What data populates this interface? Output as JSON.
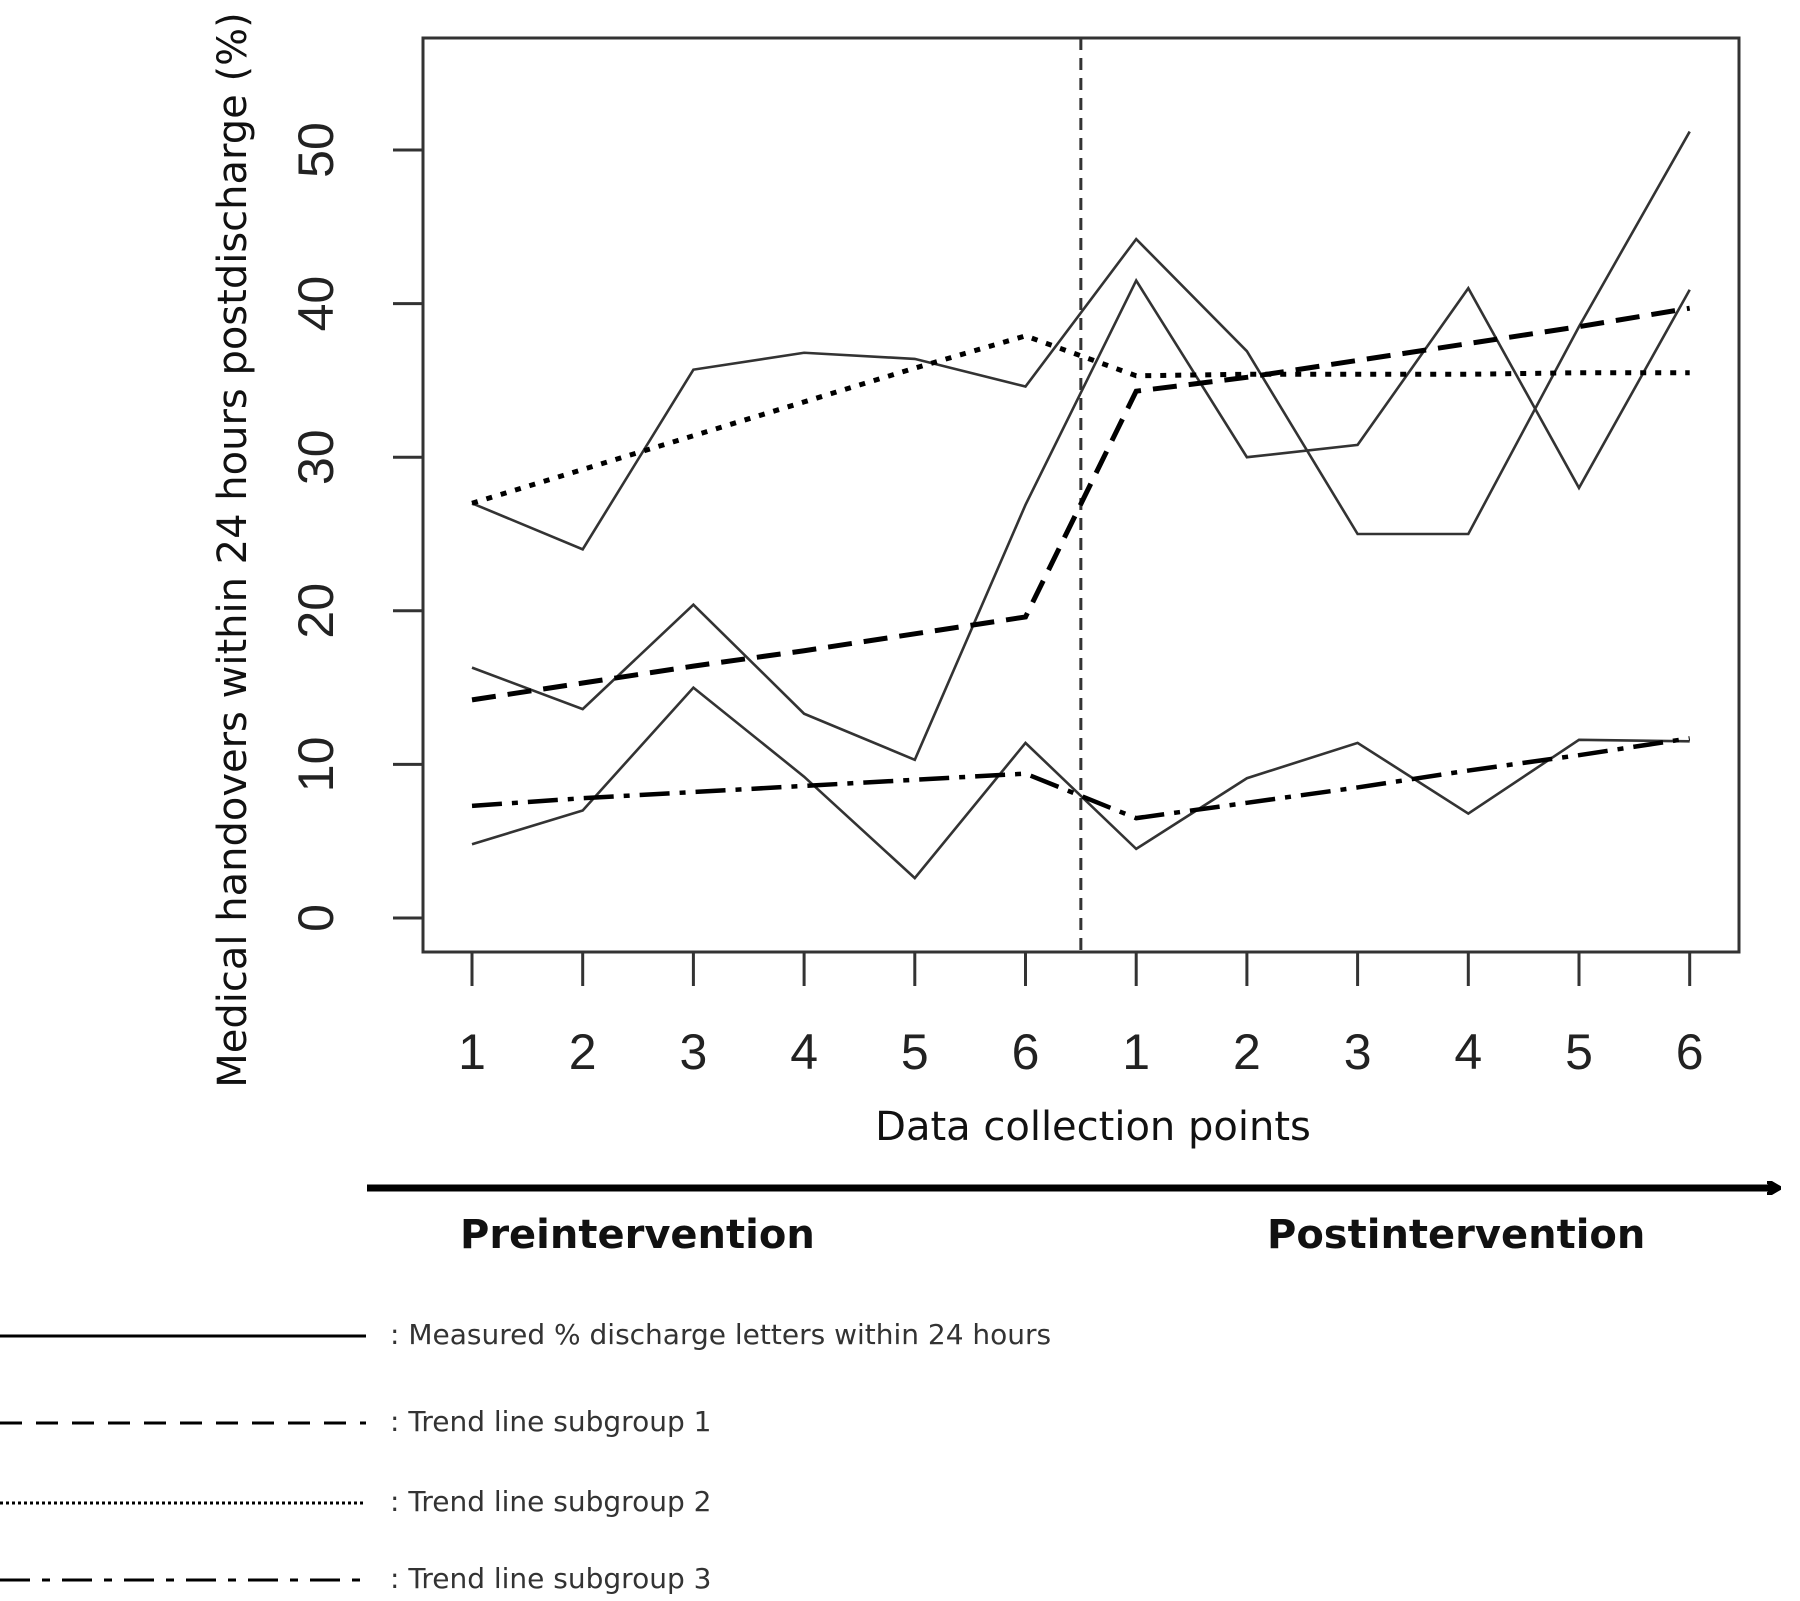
{
  "chart_data": {
    "type": "line",
    "ylabel": "Medical handovers within 24 hours postdischarge  (%)",
    "xlabel": "Data collection points",
    "phases": {
      "pre": "Preintervention",
      "post": "Postintervention"
    },
    "categories": [
      "1",
      "2",
      "3",
      "4",
      "5",
      "6",
      "1",
      "2",
      "3",
      "4",
      "5",
      "6"
    ],
    "ylim": [
      0,
      55
    ],
    "yticks": [
      0,
      10,
      20,
      30,
      40,
      50
    ],
    "intervention_after_index": 5,
    "grid": false,
    "legend_position": "bottom-left",
    "series": [
      {
        "legend": ": Measured % discharge letters within 24 hours",
        "style": "solid",
        "values": [
          27,
          24,
          35.7,
          36.8,
          36.4,
          34.6,
          44.2,
          36.9,
          25,
          25,
          38.5,
          51.2
        ]
      },
      {
        "style": "solid",
        "values": [
          16.3,
          13.6,
          20.4,
          13.3,
          10.3,
          26.9,
          41.5,
          30,
          30.8,
          41,
          28,
          40.9
        ]
      },
      {
        "style": "solid",
        "values": [
          4.8,
          7,
          15,
          9.2,
          2.6,
          11.4,
          4.5,
          9.1,
          11.4,
          6.8,
          11.6,
          11.5
        ]
      },
      {
        "legend": ": Trend line subgroup 1",
        "style": "dashed",
        "values": [
          14.2,
          15.3,
          16.4,
          17.4,
          18.5,
          19.6,
          34.3,
          35.2,
          36.3,
          37.4,
          38.5,
          39.7
        ]
      },
      {
        "legend": ": Trend line subgroup 2",
        "style": "dotted",
        "values": [
          27,
          29.2,
          31.4,
          33.6,
          35.8,
          37.9,
          35.3,
          35.4,
          35.4,
          35.4,
          35.5,
          35.5
        ]
      },
      {
        "legend": ": Trend line subgroup 3",
        "style": "dashdot",
        "values": [
          7.3,
          7.8,
          8.2,
          8.6,
          9,
          9.4,
          6.5,
          7.5,
          8.5,
          9.6,
          10.6,
          11.7
        ]
      }
    ]
  }
}
